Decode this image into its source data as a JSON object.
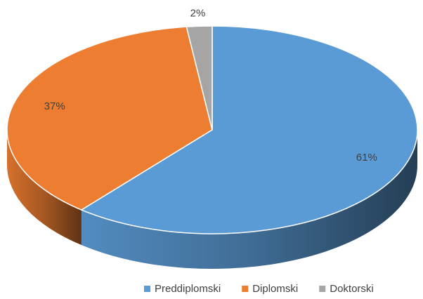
{
  "chart_data": {
    "type": "pie",
    "categories": [
      "Preddiplomski",
      "Diplomski",
      "Doktorski"
    ],
    "values": [
      61,
      37,
      2
    ],
    "value_labels": [
      "61%",
      "37%",
      "2%"
    ],
    "colors": [
      "#5b9bd5",
      "#ed7d31",
      "#a5a5a5"
    ],
    "legend": "bottom"
  }
}
